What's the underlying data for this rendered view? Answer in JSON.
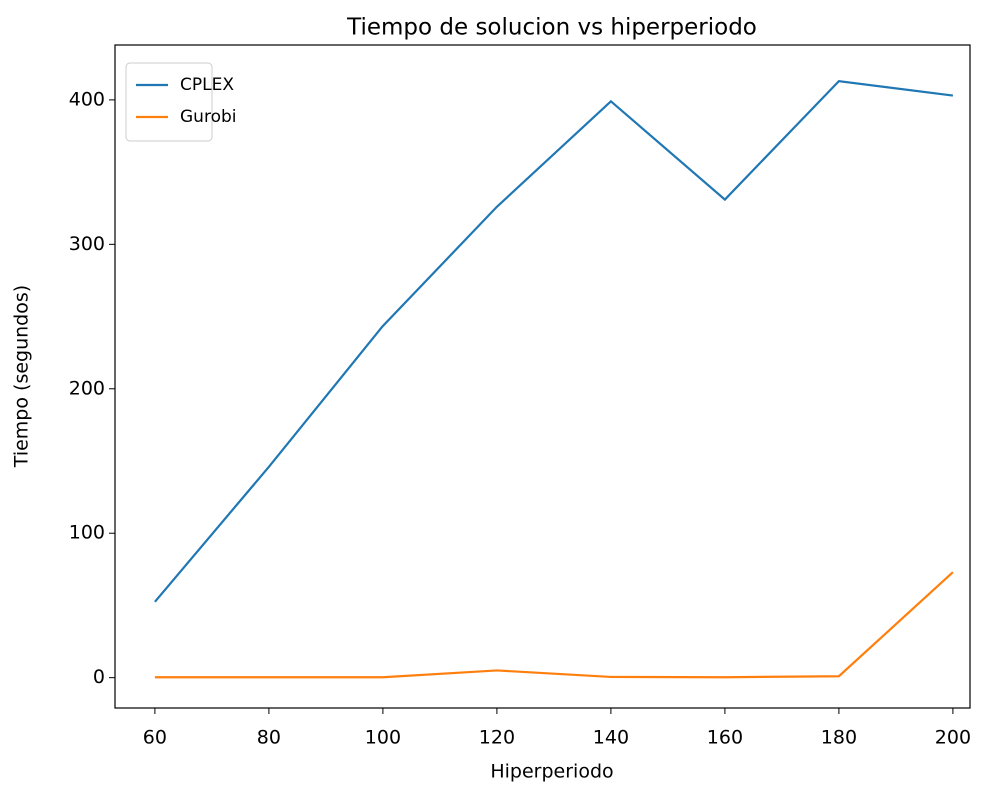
{
  "chart_data": {
    "type": "line",
    "title": "Tiempo de solucion vs hiperperiodo",
    "xlabel": "Hiperperiodo",
    "ylabel": "Tiempo (segundos)",
    "x": [
      60,
      80,
      100,
      120,
      140,
      160,
      180,
      200
    ],
    "series": [
      {
        "name": "CPLEX",
        "color": "#1f77b4",
        "values": [
          52.5,
          146,
          243.5,
          326,
          399,
          331,
          413,
          403
        ]
      },
      {
        "name": "Gurobi",
        "color": "#ff7f0e",
        "values": [
          0.3,
          0.3,
          0.3,
          5,
          0.5,
          0.3,
          1,
          73
        ]
      }
    ],
    "xlim": [
      53,
      203
    ],
    "ylim": [
      -21,
      438
    ],
    "xticks": [
      60,
      80,
      100,
      120,
      140,
      160,
      180,
      200
    ],
    "yticks": [
      0,
      100,
      200,
      300,
      400
    ],
    "legend": "upper left"
  }
}
